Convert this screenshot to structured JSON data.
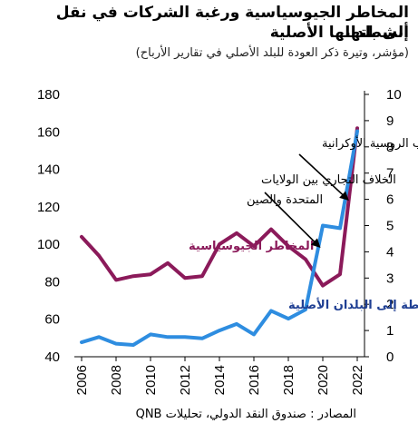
{
  "title_line1": "المخاطر الجيوسياسية ورغبة الشركات في نقل أنشطتها",
  "title_line2": "إلى بلدانها الأصلية",
  "subtitle": "(مؤشر، وتيرة ذكر العودة للبلد الأصلي في تقارير الأرباح)",
  "source": "المصادر : صندوق النقد الدولي، تحليلات QNB",
  "chart_data": {
    "type": "line",
    "x": [
      2006,
      2007,
      2008,
      2009,
      2010,
      2011,
      2012,
      2013,
      2014,
      2015,
      2016,
      2017,
      2018,
      2019,
      2020,
      2021,
      2022
    ],
    "x_ticks": [
      2006,
      2008,
      2010,
      2012,
      2014,
      2016,
      2018,
      2020,
      2022
    ],
    "ylim_left": [
      40,
      180
    ],
    "yticks_left": [
      40,
      60,
      80,
      100,
      120,
      140,
      160,
      180
    ],
    "ylim_right": [
      0,
      10
    ],
    "yticks_right": [
      0,
      1,
      2,
      3,
      4,
      5,
      6,
      7,
      8,
      9,
      10
    ],
    "series": [
      {
        "name": "المخاطر الجيوسياسية",
        "axis": "left",
        "color": "#8b1a5a",
        "values": [
          104,
          94,
          81,
          83,
          84,
          90,
          82,
          83,
          100,
          106,
          99,
          108,
          99,
          92,
          78,
          84,
          162
        ]
      },
      {
        "name": "الرغبة في نقل الأنشطة إلى البلدان الأصلية",
        "axis": "right",
        "color": "#2e8de0",
        "values": [
          0.55,
          0.75,
          0.5,
          0.45,
          0.85,
          0.75,
          0.75,
          0.7,
          1.0,
          1.25,
          0.85,
          1.75,
          1.45,
          1.8,
          5.0,
          4.9,
          8.6
        ]
      }
    ],
    "annotations": [
      {
        "id": "russia",
        "line1": "الحرب الروسية الأوكرانية",
        "line2": "",
        "target_x": 2021.6,
        "target_series": 1,
        "target_y": 6.0
      },
      {
        "id": "trade",
        "line1": "الخلاف التجاري بين الولايات",
        "line2": "المتحدة والصين",
        "target_x": 2019.9,
        "target_series": 1,
        "target_y": 4.2
      }
    ]
  }
}
